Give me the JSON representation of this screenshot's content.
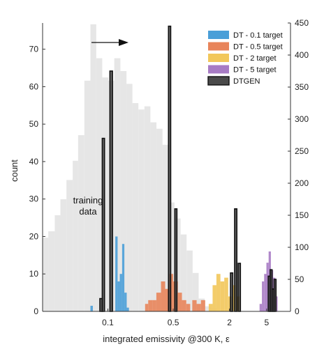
{
  "chart_data": {
    "type": "bar",
    "xlabel": "integrated emissivity @300 K, ε",
    "ylabel_left": "count",
    "ylabel_right": "",
    "x_scale": "log",
    "xlim": [
      0.02,
      9
    ],
    "ylim_left": [
      0,
      77
    ],
    "ylim_right": [
      0,
      450
    ],
    "x_ticks": [
      {
        "value": 0.1,
        "label": "0.1"
      },
      {
        "value": 0.5,
        "label": "0.5"
      },
      {
        "value": 2,
        "label": "2"
      },
      {
        "value": 5,
        "label": "5"
      }
    ],
    "y_ticks_left": [
      0,
      10,
      20,
      30,
      40,
      50,
      60,
      70
    ],
    "y_ticks_right": [
      0,
      50,
      100,
      150,
      200,
      250,
      300,
      350,
      400,
      450
    ],
    "annotation": {
      "text_lines": [
        "training",
        "data"
      ],
      "arrow": "right"
    },
    "legend_position": "top-right",
    "series": [
      {
        "name": "training data",
        "axis": "right",
        "color": "#e6e6e6",
        "bins": [
          {
            "x0": 0.02,
            "x1": 0.023,
            "y": 115
          },
          {
            "x0": 0.023,
            "x1": 0.027,
            "y": 125
          },
          {
            "x0": 0.027,
            "x1": 0.031,
            "y": 150
          },
          {
            "x0": 0.031,
            "x1": 0.036,
            "y": 175
          },
          {
            "x0": 0.036,
            "x1": 0.042,
            "y": 205
          },
          {
            "x0": 0.042,
            "x1": 0.048,
            "y": 235
          },
          {
            "x0": 0.048,
            "x1": 0.056,
            "y": 275
          },
          {
            "x0": 0.056,
            "x1": 0.065,
            "y": 360
          },
          {
            "x0": 0.065,
            "x1": 0.075,
            "y": 448
          },
          {
            "x0": 0.075,
            "x1": 0.087,
            "y": 395
          },
          {
            "x0": 0.087,
            "x1": 0.101,
            "y": 365
          },
          {
            "x0": 0.101,
            "x1": 0.117,
            "y": 360
          },
          {
            "x0": 0.117,
            "x1": 0.136,
            "y": 395
          },
          {
            "x0": 0.136,
            "x1": 0.158,
            "y": 375
          },
          {
            "x0": 0.158,
            "x1": 0.183,
            "y": 355
          },
          {
            "x0": 0.183,
            "x1": 0.212,
            "y": 325
          },
          {
            "x0": 0.212,
            "x1": 0.246,
            "y": 315
          },
          {
            "x0": 0.246,
            "x1": 0.285,
            "y": 320
          },
          {
            "x0": 0.285,
            "x1": 0.331,
            "y": 295
          },
          {
            "x0": 0.331,
            "x1": 0.384,
            "y": 285
          },
          {
            "x0": 0.384,
            "x1": 0.445,
            "y": 260
          },
          {
            "x0": 0.445,
            "x1": 0.516,
            "y": 170
          },
          {
            "x0": 0.516,
            "x1": 0.6,
            "y": 145
          },
          {
            "x0": 0.6,
            "x1": 0.695,
            "y": 120
          },
          {
            "x0": 0.695,
            "x1": 0.807,
            "y": 95
          },
          {
            "x0": 0.807,
            "x1": 0.936,
            "y": 60
          },
          {
            "x0": 0.936,
            "x1": 1.086,
            "y": 20
          },
          {
            "x0": 1.086,
            "x1": 1.26,
            "y": 8
          },
          {
            "x0": 1.26,
            "x1": 1.462,
            "y": 5
          }
        ]
      },
      {
        "name": "DT - 0.1 target",
        "axis": "left",
        "color": "#4a9fd8",
        "bins": [
          {
            "x0": 0.065,
            "x1": 0.069,
            "y": 1.5
          },
          {
            "x0": 0.12,
            "x1": 0.127,
            "y": 20
          },
          {
            "x0": 0.127,
            "x1": 0.134,
            "y": 8
          },
          {
            "x0": 0.134,
            "x1": 0.142,
            "y": 10
          },
          {
            "x0": 0.142,
            "x1": 0.15,
            "y": 18
          },
          {
            "x0": 0.15,
            "x1": 0.159,
            "y": 5
          },
          {
            "x0": 0.159,
            "x1": 0.168,
            "y": 1
          }
        ]
      },
      {
        "name": "DT - 0.5 target",
        "axis": "left",
        "color": "#e8845a",
        "bins": [
          {
            "x0": 0.25,
            "x1": 0.27,
            "y": 2
          },
          {
            "x0": 0.27,
            "x1": 0.3,
            "y": 3
          },
          {
            "x0": 0.3,
            "x1": 0.33,
            "y": 3
          },
          {
            "x0": 0.33,
            "x1": 0.37,
            "y": 5
          },
          {
            "x0": 0.37,
            "x1": 0.41,
            "y": 8
          },
          {
            "x0": 0.41,
            "x1": 0.45,
            "y": 6
          },
          {
            "x0": 0.45,
            "x1": 0.5,
            "y": 10
          },
          {
            "x0": 0.5,
            "x1": 0.56,
            "y": 8
          },
          {
            "x0": 0.56,
            "x1": 0.62,
            "y": 5
          },
          {
            "x0": 0.62,
            "x1": 0.69,
            "y": 3
          },
          {
            "x0": 0.69,
            "x1": 0.76,
            "y": 2
          },
          {
            "x0": 0.8,
            "x1": 0.89,
            "y": 3
          },
          {
            "x0": 0.89,
            "x1": 0.99,
            "y": 2
          },
          {
            "x0": 0.99,
            "x1": 1.1,
            "y": 3
          }
        ]
      },
      {
        "name": "DT - 2 target",
        "axis": "left",
        "color": "#f2c75a",
        "bins": [
          {
            "x0": 1.2,
            "x1": 1.32,
            "y": 2
          },
          {
            "x0": 1.32,
            "x1": 1.45,
            "y": 7
          },
          {
            "x0": 1.45,
            "x1": 1.6,
            "y": 10
          },
          {
            "x0": 1.6,
            "x1": 1.76,
            "y": 8
          },
          {
            "x0": 1.76,
            "x1": 1.94,
            "y": 9
          },
          {
            "x0": 1.94,
            "x1": 2.13,
            "y": 4
          },
          {
            "x0": 2.13,
            "x1": 2.35,
            "y": 7
          },
          {
            "x0": 2.35,
            "x1": 2.6,
            "y": 4
          }
        ]
      },
      {
        "name": "DT - 5 target",
        "axis": "left",
        "color": "#a77bc4",
        "bins": [
          {
            "x0": 4.2,
            "x1": 4.45,
            "y": 2
          },
          {
            "x0": 4.45,
            "x1": 4.7,
            "y": 8
          },
          {
            "x0": 4.7,
            "x1": 4.97,
            "y": 10
          },
          {
            "x0": 4.97,
            "x1": 5.25,
            "y": 13
          },
          {
            "x0": 5.25,
            "x1": 5.55,
            "y": 16
          },
          {
            "x0": 5.55,
            "x1": 5.87,
            "y": 11
          },
          {
            "x0": 5.87,
            "x1": 6.2,
            "y": 9
          },
          {
            "x0": 6.2,
            "x1": 6.55,
            "y": 4
          }
        ]
      },
      {
        "name": "DTGEN",
        "axis": "right",
        "color": "#4a4a4a",
        "bins": [
          {
            "x0": 0.082,
            "x1": 0.087,
            "y": 20
          },
          {
            "x0": 0.087,
            "x1": 0.092,
            "y": 270
          },
          {
            "x0": 0.105,
            "x1": 0.112,
            "y": 375
          },
          {
            "x0": 0.445,
            "x1": 0.47,
            "y": 445
          },
          {
            "x0": 0.52,
            "x1": 0.548,
            "y": 160
          },
          {
            "x0": 2.05,
            "x1": 2.17,
            "y": 60
          },
          {
            "x0": 2.27,
            "x1": 2.4,
            "y": 160
          },
          {
            "x0": 2.48,
            "x1": 2.62,
            "y": 75
          },
          {
            "x0": 5.2,
            "x1": 5.45,
            "y": 55
          },
          {
            "x0": 5.45,
            "x1": 5.72,
            "y": 65
          },
          {
            "x0": 5.72,
            "x1": 6.0,
            "y": 35
          },
          {
            "x0": 6.0,
            "x1": 6.3,
            "y": 50
          }
        ]
      }
    ],
    "legend": [
      {
        "label": "DT - 0.1 target",
        "color": "#4a9fd8"
      },
      {
        "label": "DT - 0.5 target",
        "color": "#e8845a"
      },
      {
        "label": "DT - 2 target",
        "color": "#f2c75a"
      },
      {
        "label": "DT - 5 target",
        "color": "#a77bc4"
      },
      {
        "label": "DTGEN",
        "color": "#4a4a4a"
      }
    ]
  }
}
